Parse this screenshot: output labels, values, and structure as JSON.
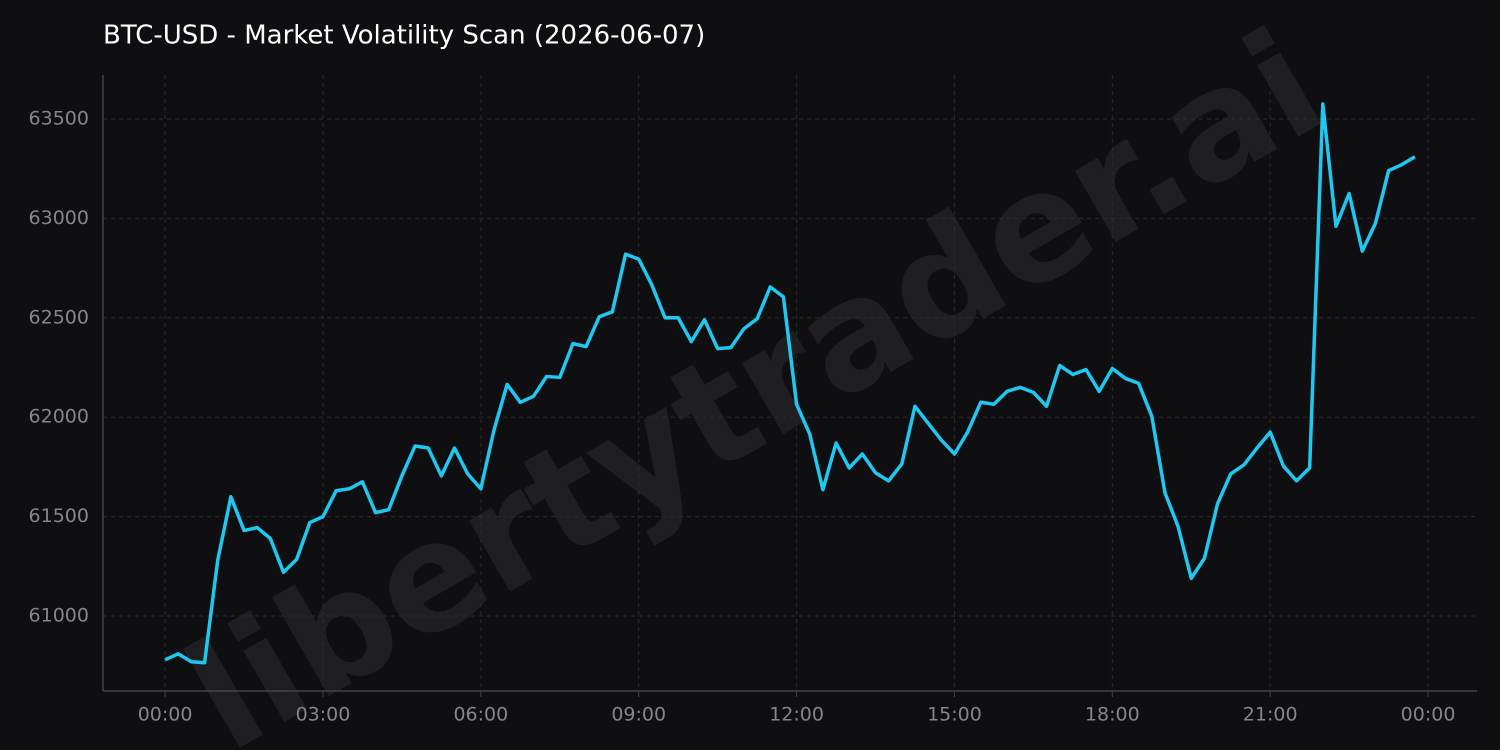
{
  "chart_data": {
    "type": "line",
    "title": "BTC-USD - Market Volatility Scan (2026-06-07)",
    "watermark": "libertytrader.ai",
    "x": [
      0,
      0.25,
      0.5,
      0.75,
      1,
      1.25,
      1.5,
      1.75,
      2,
      2.25,
      2.5,
      2.75,
      3,
      3.25,
      3.5,
      3.75,
      4,
      4.25,
      4.5,
      4.75,
      5,
      5.25,
      5.5,
      5.75,
      6,
      6.25,
      6.5,
      6.75,
      7,
      7.25,
      7.5,
      7.75,
      8,
      8.25,
      8.5,
      8.75,
      9,
      9.25,
      9.5,
      9.75,
      10,
      10.25,
      10.5,
      10.75,
      11,
      11.25,
      11.5,
      11.75,
      12,
      12.25,
      12.5,
      12.75,
      13,
      13.25,
      13.5,
      13.75,
      14,
      14.25,
      14.5,
      14.75,
      15,
      15.25,
      15.5,
      15.75,
      16,
      16.25,
      16.5,
      16.75,
      17,
      17.25,
      17.5,
      17.75,
      18,
      18.25,
      18.5,
      18.75,
      19,
      19.25,
      19.5,
      19.75,
      20,
      20.25,
      20.5,
      20.75,
      21,
      21.25,
      21.5,
      21.75,
      22,
      22.25,
      22.5,
      22.75,
      23,
      23.25,
      23.5,
      23.75
    ],
    "series": [
      {
        "name": "BTC-USD",
        "color": "#1ec8f0",
        "values": [
          60780,
          60810,
          60770,
          60765,
          61280,
          61600,
          61430,
          61445,
          61390,
          61220,
          61285,
          61470,
          61500,
          61630,
          61640,
          61675,
          61520,
          61535,
          61705,
          61855,
          61845,
          61705,
          61845,
          61715,
          61640,
          61935,
          62165,
          62075,
          62105,
          62205,
          62200,
          62370,
          62355,
          62505,
          62530,
          62820,
          62795,
          62665,
          62500,
          62500,
          62380,
          62490,
          62345,
          62350,
          62445,
          62495,
          62655,
          62605,
          62065,
          61915,
          61635,
          61870,
          61745,
          61815,
          61720,
          61680,
          61765,
          62055,
          61970,
          61885,
          61815,
          61925,
          62075,
          62065,
          62130,
          62150,
          62125,
          62055,
          62260,
          62215,
          62240,
          62130,
          62245,
          62195,
          62170,
          62005,
          61620,
          61450,
          61190,
          61290,
          61565,
          61715,
          61760,
          61845,
          61925,
          61755,
          61680,
          61745,
          63575,
          62960,
          63125,
          62835,
          62975,
          63240,
          63270,
          63310
        ]
      }
    ],
    "xlim": [
      -1.18,
      24.93
    ],
    "xticks": [
      {
        "value": 0,
        "label": "00:00"
      },
      {
        "value": 3,
        "label": "03:00"
      },
      {
        "value": 6,
        "label": "06:00"
      },
      {
        "value": 9,
        "label": "09:00"
      },
      {
        "value": 12,
        "label": "12:00"
      },
      {
        "value": 15,
        "label": "15:00"
      },
      {
        "value": 18,
        "label": "18:00"
      },
      {
        "value": 21,
        "label": "21:00"
      },
      {
        "value": 24,
        "label": "00:00"
      }
    ],
    "ylim": [
      60623,
      63721
    ],
    "yticks": [
      61000,
      61500,
      62000,
      62500,
      63000,
      63500
    ],
    "grid": true
  }
}
